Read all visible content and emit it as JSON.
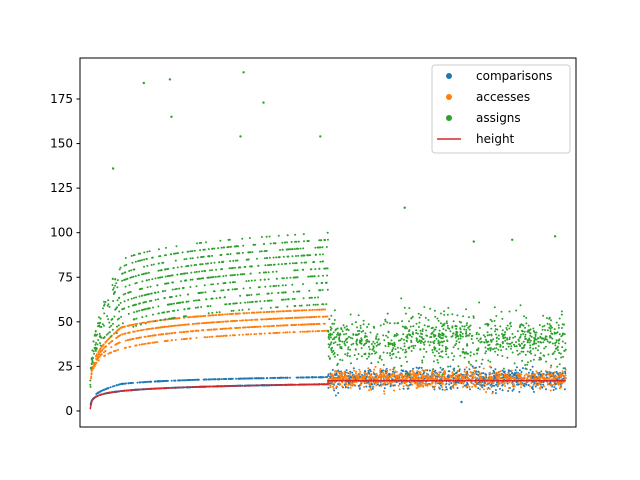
{
  "chart_data": {
    "type": "scatter",
    "title": "",
    "xlabel": "",
    "ylabel": "",
    "ylim": [
      -9,
      198
    ],
    "xlim": [
      -66,
      3166
    ],
    "x_ticks_shown": false,
    "yticks": [
      0,
      25,
      50,
      75,
      100,
      125,
      150,
      175
    ],
    "grid": false,
    "legend_position": "top-right",
    "x_split": 1550,
    "x_end": 3100,
    "series": [
      {
        "name": "comparisons",
        "kind": "scatter",
        "color": "#1f77b4",
        "segments": [
          {
            "x_range": [
              0,
              1550
            ],
            "trend": "log",
            "y_start": 1,
            "y_end": 15,
            "spread": 3
          },
          {
            "x_range": [
              1550,
              3100
            ],
            "trend": "flat",
            "y_center": 18,
            "spread": 8
          }
        ]
      },
      {
        "name": "accesses",
        "kind": "scatter",
        "color": "#ff7f0e",
        "segments": [
          {
            "x_range": [
              0,
              1550
            ],
            "trend": "log",
            "y_start": 8,
            "y_end": 45,
            "spread": 14
          },
          {
            "x_range": [
              1550,
              3100
            ],
            "trend": "flat",
            "y_center": 18,
            "spread": 7
          }
        ]
      },
      {
        "name": "assigns",
        "kind": "scatter",
        "color": "#2ca02c",
        "segments": [
          {
            "x_range": [
              0,
              1550
            ],
            "trend": "log",
            "y_start": 5,
            "y_end": 60,
            "spread": 40
          },
          {
            "x_range": [
              1550,
              3100
            ],
            "trend": "flat",
            "y_center": 40,
            "spread": 20
          }
        ]
      },
      {
        "name": "height",
        "kind": "line",
        "color": "#d62728",
        "segments": [
          {
            "x_range": [
              0,
              1550
            ],
            "trend": "log",
            "y_start": 1,
            "y_end": 15
          },
          {
            "x_range": [
              1550,
              3100
            ],
            "trend": "flat",
            "y_center": 17
          }
        ]
      }
    ],
    "outliers": [
      {
        "x": 350,
        "y": 184,
        "series": "assigns"
      },
      {
        "x": 520,
        "y": 186,
        "series": "assigns"
      },
      {
        "x": 1000,
        "y": 190,
        "series": "assigns"
      },
      {
        "x": 1130,
        "y": 173,
        "series": "assigns"
      },
      {
        "x": 530,
        "y": 165,
        "series": "assigns"
      },
      {
        "x": 1500,
        "y": 154,
        "series": "assigns"
      },
      {
        "x": 980,
        "y": 154,
        "series": "assigns"
      },
      {
        "x": 150,
        "y": 136,
        "series": "assigns"
      },
      {
        "x": 2050,
        "y": 114,
        "series": "assigns"
      },
      {
        "x": 2750,
        "y": 96,
        "series": "assigns"
      },
      {
        "x": 3030,
        "y": 98,
        "series": "assigns"
      },
      {
        "x": 2500,
        "y": 95,
        "series": "assigns"
      },
      {
        "x": 2420,
        "y": 5,
        "series": "comparisons"
      }
    ]
  }
}
